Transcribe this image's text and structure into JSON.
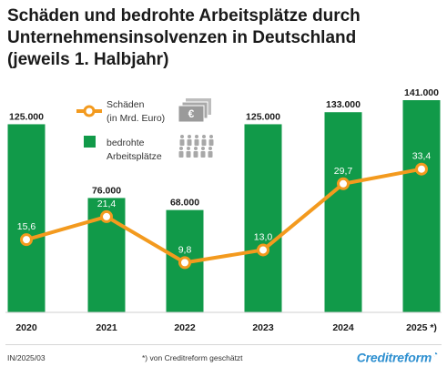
{
  "title_lines": [
    "Schäden und bedrohte Arbeitsplätze durch",
    "Unternehmensinsolvenzen in Deutschland",
    "(jeweils 1. Halbjahr)"
  ],
  "legend": {
    "line_label_1": "Schäden",
    "line_label_2": "(in Mrd. Euro)",
    "bar_label_1": "bedrohte",
    "bar_label_2": "Arbeitsplätze",
    "money_icon": "banknotes-icon",
    "people_icon": "people-icon"
  },
  "chart_data": {
    "type": "bar+line",
    "categories": [
      "2020",
      "2021",
      "2022",
      "2023",
      "2024",
      "2025 *)"
    ],
    "series": [
      {
        "name": "bedrohte Arbeitsplätze",
        "type": "bar",
        "values": [
          125000,
          76000,
          68000,
          125000,
          133000,
          141000
        ],
        "labels": [
          "125.000",
          "76.000",
          "68.000",
          "125.000",
          "133.000",
          "141.000"
        ],
        "color": "#119a49"
      },
      {
        "name": "Schäden (in Mrd. Euro)",
        "type": "line",
        "values": [
          15.6,
          21.4,
          9.8,
          13.0,
          29.7,
          33.4
        ],
        "labels": [
          "15,6",
          "21,4",
          "9,8",
          "13,0",
          "29,7",
          "33,4"
        ],
        "color": "#f39a1e"
      }
    ],
    "bar_ylim": [
      0,
      160000
    ],
    "line_ylim": [
      0,
      60
    ],
    "grid": false
  },
  "footer": {
    "code": "IN/2025/03",
    "note": "*) von Creditreform geschätzt",
    "brand": "Creditreform"
  },
  "colors": {
    "bar": "#119a49",
    "line": "#f39a1e",
    "icon_gray": "#a8a8a8"
  }
}
